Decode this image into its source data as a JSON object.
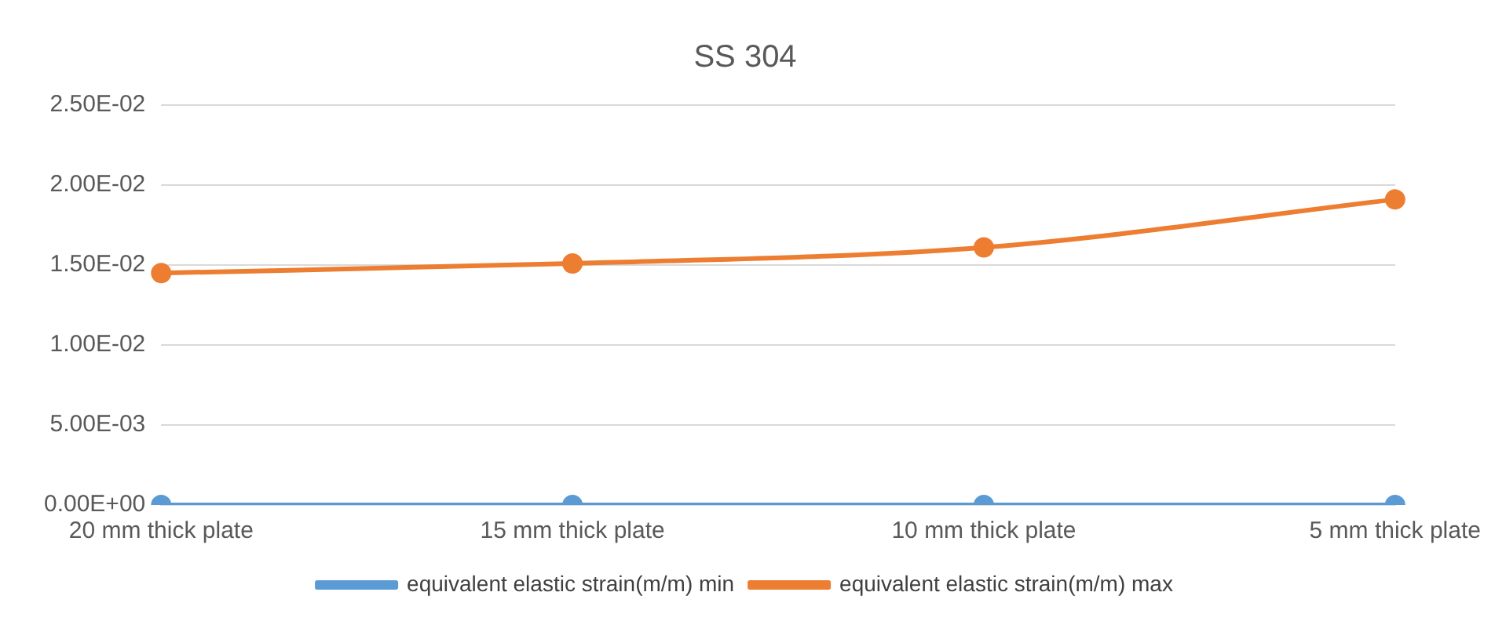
{
  "chart_data": {
    "type": "line",
    "title": "SS 304",
    "categories": [
      "20 mm thick plate",
      "15 mm thick plate",
      "10 mm thick plate",
      "5 mm thick plate"
    ],
    "series": [
      {
        "name": "equivalent elastic strain(m/m) min",
        "color": "#5b9bd5",
        "values": [
          0,
          0,
          0,
          0
        ]
      },
      {
        "name": "equivalent elastic strain(m/m) max",
        "color": "#ed7d31",
        "values": [
          0.0145,
          0.0151,
          0.0161,
          0.0191
        ]
      }
    ],
    "ylim": [
      0,
      0.025
    ],
    "yticks": [
      {
        "value": 0,
        "label": "0.00E+00"
      },
      {
        "value": 0.005,
        "label": "5.00E-03"
      },
      {
        "value": 0.01,
        "label": "1.00E-02"
      },
      {
        "value": 0.015,
        "label": "1.50E-02"
      },
      {
        "value": 0.02,
        "label": "2.00E-02"
      },
      {
        "value": 0.025,
        "label": "2.50E-02"
      }
    ],
    "grid": "y",
    "legend": "bottom",
    "marker": "circle",
    "line_style": "solid"
  }
}
